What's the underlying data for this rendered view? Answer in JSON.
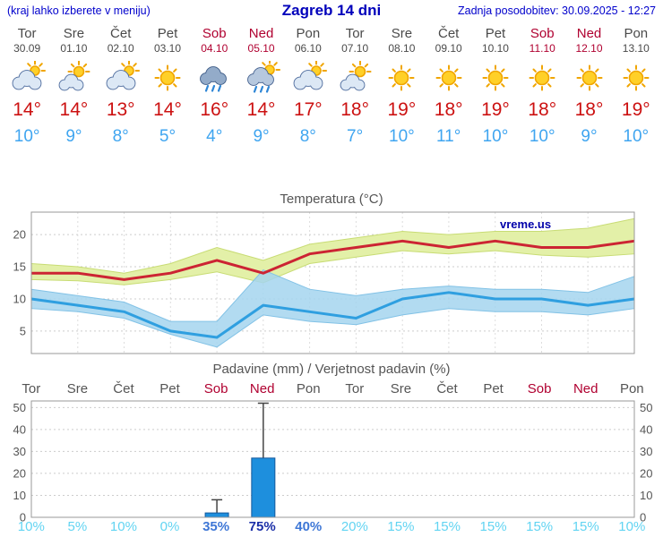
{
  "header": {
    "left_note": "(kraj lahko izberete v meniju)",
    "title": "Zagreb 14 dni",
    "updated": "Zadnja posodobitev: 30.09.2025 - 12:27"
  },
  "colors": {
    "header_blue": "#0000bb",
    "weekend_red": "#b00030",
    "temp_high_red": "#cc1111",
    "temp_low_blue": "#3fa5f0",
    "precip_bar_blue": "#1e8fdd",
    "temp_max_line": "#cc2433",
    "temp_min_line": "#2f9fe0",
    "max_band_fill": "#e3f0a8",
    "min_band_fill": "#a5d5ef"
  },
  "days": [
    {
      "name": "Tor",
      "date": "30.09",
      "weekend": false,
      "icon": "cloudy",
      "high": "14°",
      "low": "10°"
    },
    {
      "name": "Sre",
      "date": "01.10",
      "weekend": false,
      "icon": "partly",
      "high": "14°",
      "low": "9°"
    },
    {
      "name": "Čet",
      "date": "02.10",
      "weekend": false,
      "icon": "cloudy",
      "high": "13°",
      "low": "8°"
    },
    {
      "name": "Pet",
      "date": "03.10",
      "weekend": false,
      "icon": "sunny",
      "high": "14°",
      "low": "5°"
    },
    {
      "name": "Sob",
      "date": "04.10",
      "weekend": true,
      "icon": "rain",
      "high": "16°",
      "low": "4°"
    },
    {
      "name": "Ned",
      "date": "05.10",
      "weekend": true,
      "icon": "showers",
      "high": "14°",
      "low": "9°"
    },
    {
      "name": "Pon",
      "date": "06.10",
      "weekend": false,
      "icon": "cloudy",
      "high": "17°",
      "low": "8°"
    },
    {
      "name": "Tor",
      "date": "07.10",
      "weekend": false,
      "icon": "partly",
      "high": "18°",
      "low": "7°"
    },
    {
      "name": "Sre",
      "date": "08.10",
      "weekend": false,
      "icon": "sunny",
      "high": "19°",
      "low": "10°"
    },
    {
      "name": "Čet",
      "date": "09.10",
      "weekend": false,
      "icon": "sunny",
      "high": "18°",
      "low": "11°"
    },
    {
      "name": "Pet",
      "date": "10.10",
      "weekend": false,
      "icon": "sunny",
      "high": "19°",
      "low": "10°"
    },
    {
      "name": "Sob",
      "date": "11.10",
      "weekend": true,
      "icon": "sunny",
      "high": "18°",
      "low": "10°"
    },
    {
      "name": "Ned",
      "date": "12.10",
      "weekend": true,
      "icon": "sunny",
      "high": "18°",
      "low": "9°"
    },
    {
      "name": "Pon",
      "date": "13.10",
      "weekend": false,
      "icon": "sunny",
      "high": "19°",
      "low": "10°"
    }
  ],
  "chart_data": [
    {
      "type": "line",
      "title": "Temperatura (°C)",
      "watermark": "vreme.us",
      "categories": [
        "30.09",
        "01.10",
        "02.10",
        "03.10",
        "04.10",
        "05.10",
        "06.10",
        "07.10",
        "08.10",
        "09.10",
        "10.10",
        "11.10",
        "12.10",
        "13.10"
      ],
      "ylim": [
        1.5,
        23.5
      ],
      "y_ticks": [
        5,
        10,
        15,
        20
      ],
      "grid": true,
      "series": [
        {
          "name": "temp-max",
          "color": "#cc2433",
          "values": [
            14,
            14,
            13,
            14,
            16,
            14,
            17,
            18,
            19,
            18,
            19,
            18,
            18,
            19
          ]
        },
        {
          "name": "temp-min",
          "color": "#2f9fe0",
          "values": [
            10,
            9,
            8,
            5,
            4,
            9,
            8,
            7,
            10,
            11,
            10,
            10,
            9,
            10
          ]
        }
      ],
      "bands": [
        {
          "name": "temp-max-range",
          "fill": "#e3f0a8",
          "stroke": "#c8dc74",
          "opacity": 1,
          "upper": [
            15.5,
            15,
            14,
            15.5,
            18,
            16,
            18.5,
            19.5,
            20.5,
            20,
            20.5,
            20.5,
            21,
            22.5
          ],
          "lower": [
            13,
            12.8,
            12.2,
            13,
            14.2,
            12.5,
            15.5,
            16.5,
            17.5,
            17,
            17.5,
            16.8,
            16.5,
            17
          ]
        },
        {
          "name": "temp-min-range",
          "fill": "#a5d5ef",
          "stroke": "#82c2e6",
          "opacity": 0.85,
          "upper": [
            11.5,
            10.5,
            9.5,
            6.5,
            6.5,
            14.5,
            11.5,
            10.5,
            11.5,
            12,
            11.5,
            11.5,
            11,
            13.5
          ],
          "lower": [
            8.5,
            8,
            7,
            4.5,
            2.5,
            7.5,
            6.5,
            6,
            7.5,
            8.5,
            8,
            8,
            7.5,
            8.5
          ]
        }
      ]
    },
    {
      "type": "bar",
      "title": "Padavine (mm) / Verjetnost padavin (%)",
      "ylim": [
        0,
        53
      ],
      "y_ticks": [
        0,
        10,
        20,
        30,
        40,
        50
      ],
      "grid": true,
      "bar_color": "#1e8fdd",
      "categories": [
        {
          "label": "Tor",
          "weekend": false
        },
        {
          "label": "Sre",
          "weekend": false
        },
        {
          "label": "Čet",
          "weekend": false
        },
        {
          "label": "Pet",
          "weekend": false
        },
        {
          "label": "Sob",
          "weekend": true
        },
        {
          "label": "Ned",
          "weekend": true
        },
        {
          "label": "Pon",
          "weekend": false
        },
        {
          "label": "Tor",
          "weekend": false
        },
        {
          "label": "Sre",
          "weekend": false
        },
        {
          "label": "Čet",
          "weekend": false
        },
        {
          "label": "Pet",
          "weekend": false
        },
        {
          "label": "Sob",
          "weekend": true
        },
        {
          "label": "Ned",
          "weekend": true
        },
        {
          "label": "Pon",
          "weekend": false
        }
      ],
      "bars_mm": [
        0,
        0,
        0,
        0,
        2,
        27,
        0,
        0,
        0,
        0,
        0,
        0,
        0,
        0
      ],
      "whisker_max_mm": [
        0,
        0,
        0,
        0,
        8,
        52,
        0,
        0,
        0,
        0,
        0,
        0,
        0,
        0
      ],
      "probabilities": [
        {
          "label": "10%",
          "level": 0
        },
        {
          "label": "5%",
          "level": 0
        },
        {
          "label": "10%",
          "level": 0
        },
        {
          "label": "0%",
          "level": 0
        },
        {
          "label": "35%",
          "level": 1
        },
        {
          "label": "75%",
          "level": 2
        },
        {
          "label": "40%",
          "level": 1
        },
        {
          "label": "20%",
          "level": 0
        },
        {
          "label": "15%",
          "level": 0
        },
        {
          "label": "15%",
          "level": 0
        },
        {
          "label": "15%",
          "level": 0
        },
        {
          "label": "15%",
          "level": 0
        },
        {
          "label": "15%",
          "level": 0
        },
        {
          "label": "10%",
          "level": 0
        }
      ]
    }
  ]
}
